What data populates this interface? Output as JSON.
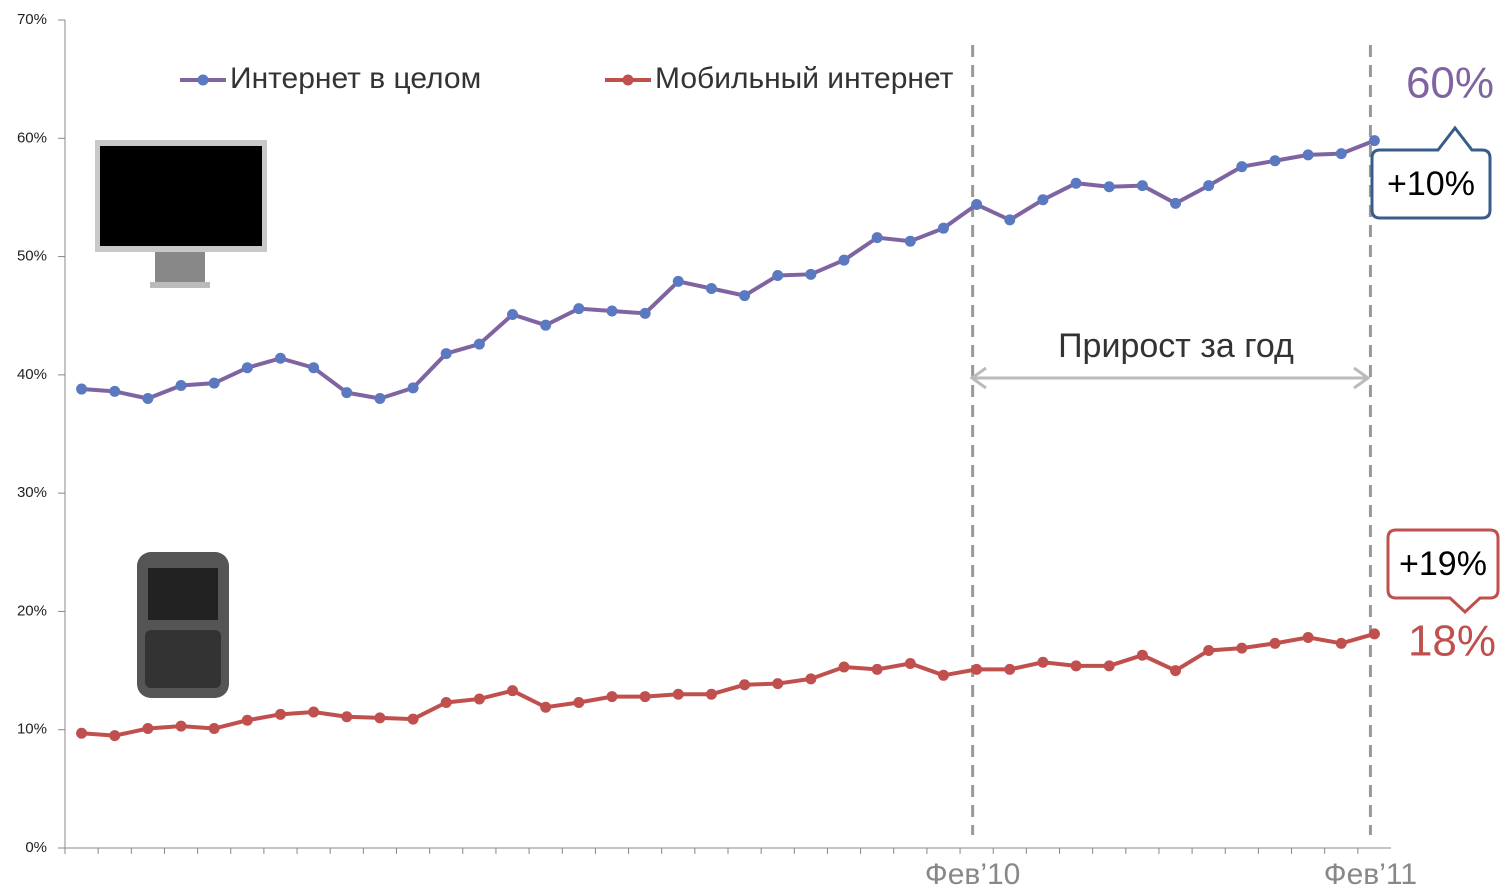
{
  "chart_data": {
    "type": "line",
    "categories": [
      null,
      null,
      null,
      null,
      null,
      null,
      null,
      null,
      null,
      null,
      null,
      null,
      null,
      null,
      null,
      null,
      null,
      null,
      null,
      null,
      null,
      null,
      null,
      null,
      null,
      null,
      null,
      "Фев’10",
      null,
      null,
      null,
      null,
      null,
      null,
      null,
      null,
      null,
      null,
      null,
      "Фев’11"
    ],
    "series": [
      {
        "name": "Интернет в целом",
        "color": "#8064a2",
        "values": [
          38.8,
          38.6,
          38.0,
          39.1,
          39.3,
          40.6,
          41.4,
          40.6,
          38.5,
          38.0,
          38.9,
          41.8,
          42.6,
          45.1,
          44.2,
          45.6,
          45.4,
          45.2,
          47.9,
          47.3,
          46.7,
          48.4,
          48.5,
          49.7,
          51.6,
          51.3,
          52.4,
          54.4,
          53.1,
          54.8,
          56.2,
          55.9,
          56.0,
          54.5,
          56.0,
          57.6,
          58.1,
          58.6,
          58.7,
          59.8
        ]
      },
      {
        "name": "Мобильный интернет",
        "color": "#c0504d",
        "values": [
          9.7,
          9.5,
          10.1,
          10.3,
          10.1,
          10.8,
          11.3,
          11.5,
          11.1,
          11.0,
          10.9,
          12.3,
          12.6,
          13.3,
          11.9,
          12.3,
          12.8,
          12.8,
          13.0,
          13.0,
          13.8,
          13.9,
          14.3,
          15.3,
          15.1,
          15.6,
          14.6,
          15.1,
          15.1,
          15.7,
          15.4,
          15.4,
          16.3,
          15.0,
          16.7,
          16.9,
          17.3,
          17.8,
          17.3,
          18.1
        ]
      }
    ],
    "ylim": [
      0,
      70
    ],
    "yticks": [
      {
        "value": 0,
        "label": "0%"
      },
      {
        "value": 10,
        "label": "10%"
      },
      {
        "value": 20,
        "label": "20%"
      },
      {
        "value": 30,
        "label": "30%"
      },
      {
        "value": 40,
        "label": "40%"
      },
      {
        "value": 50,
        "label": "50%"
      },
      {
        "value": 60,
        "label": "60%"
      },
      {
        "value": 70,
        "label": "70%"
      }
    ],
    "annotations": [
      "60%",
      "+10%",
      "+19%",
      "18%",
      "Прирост за год"
    ]
  }
}
